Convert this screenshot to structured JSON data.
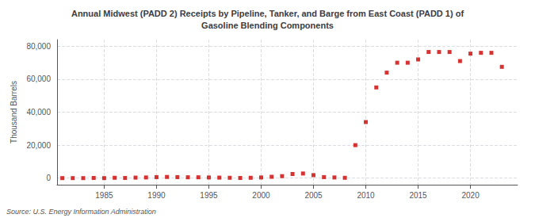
{
  "chart_data": {
    "type": "scatter",
    "title": "Annual Midwest (PADD 2) Receipts by Pipeline, Tanker, and Barge from East Coast (PADD 1) of\nGasoline Blending Components",
    "ylabel": "Thousand Barrels",
    "annotations": [
      "Source: U.S. Energy Information Administration"
    ],
    "color": "#cc0000",
    "marker": "square",
    "grid": true,
    "xlim": [
      1980.5,
      2024.5
    ],
    "xticks": [
      1985,
      1990,
      1995,
      2000,
      2005,
      2010,
      2015,
      2020
    ],
    "ylim": [
      -4000,
      84000
    ],
    "yticks": [
      0,
      {
        "value": 20000,
        "label": "20,000"
      },
      {
        "value": 40000,
        "label": "40,000"
      },
      {
        "value": 60000,
        "label": "60,000"
      },
      {
        "value": 80000,
        "label": "80,000"
      }
    ],
    "x": [
      1981,
      1982,
      1983,
      1984,
      1985,
      1986,
      1987,
      1988,
      1989,
      1990,
      1991,
      1992,
      1993,
      1994,
      1995,
      1996,
      1997,
      1998,
      1999,
      2000,
      2001,
      2002,
      2003,
      2004,
      2005,
      2006,
      2007,
      2008,
      2009,
      2010,
      2011,
      2012,
      2013,
      2014,
      2015,
      2016,
      2017,
      2018,
      2019,
      2020,
      2021,
      2022,
      2023
    ],
    "values": [
      0,
      0,
      0,
      100,
      0,
      200,
      100,
      300,
      400,
      600,
      700,
      600,
      500,
      500,
      400,
      300,
      200,
      100,
      200,
      400,
      800,
      1200,
      2500,
      2800,
      1800,
      600,
      400,
      200,
      20000,
      34000,
      55000,
      64000,
      70000,
      70000,
      72000,
      76500,
      76500,
      76500,
      71000,
      75500,
      76000,
      76000,
      67500
    ]
  }
}
